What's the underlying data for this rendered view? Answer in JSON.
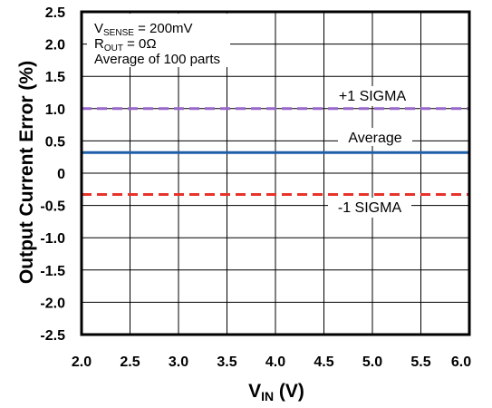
{
  "chart_data": {
    "type": "line",
    "xlabel_main": "V",
    "xlabel_sub": "IN",
    "xlabel_unit": " (V)",
    "ylabel": "Output Current Error (%)",
    "xlim": [
      2.0,
      6.0
    ],
    "ylim": [
      -2.5,
      2.5
    ],
    "x_ticks": [
      2.0,
      2.5,
      3.0,
      3.5,
      4.0,
      4.5,
      5.0,
      5.5,
      6.0
    ],
    "y_ticks": [
      2.5,
      2.0,
      1.5,
      1.0,
      0.5,
      0,
      -0.5,
      -1.0,
      -1.5,
      -2.0,
      -2.5
    ],
    "x_tick_labels": [
      "2.0",
      "2.5",
      "3.0",
      "3.5",
      "4.0",
      "4.5",
      "5.0",
      "5.5",
      "6.0"
    ],
    "y_tick_labels": [
      "2.5",
      "2.0",
      "1.5",
      "1.0",
      "0.5",
      "0",
      "-0.5",
      "-1.0",
      "-1.5",
      "-2.0",
      "-2.5"
    ],
    "grid": true,
    "conditions": [
      {
        "main": "V",
        "sub": "SENSE",
        "rest": " = 200mV"
      },
      {
        "main": "R",
        "sub": "OUT",
        "rest": " = 0Ω"
      },
      {
        "main": "Average of 100 parts",
        "sub": "",
        "rest": ""
      }
    ],
    "series": [
      {
        "name": "+1 SIGMA",
        "color": "#9966cc",
        "dashed": true,
        "x": [
          2.0,
          6.0
        ],
        "y": [
          1.0,
          1.0
        ]
      },
      {
        "name": "Average",
        "color": "#1f5fa8",
        "dashed": false,
        "x": [
          2.0,
          6.0
        ],
        "y": [
          0.32,
          0.32
        ]
      },
      {
        "name": "-1 SIGMA",
        "color": "#e8332a",
        "dashed": true,
        "x": [
          2.0,
          6.0
        ],
        "y": [
          -0.33,
          -0.33
        ]
      }
    ]
  }
}
